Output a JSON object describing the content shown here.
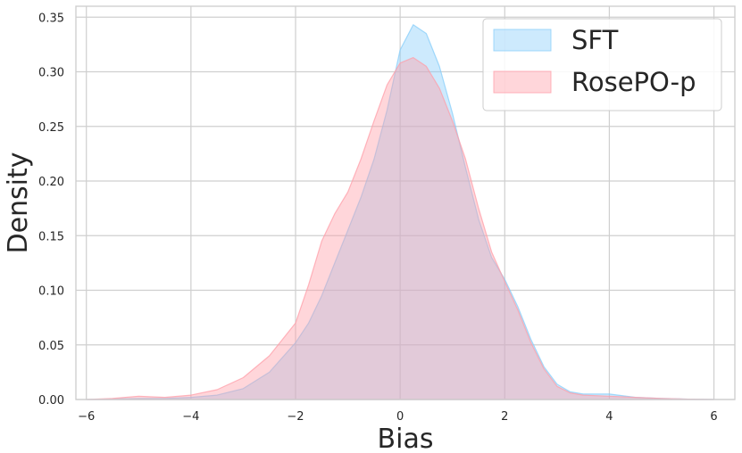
{
  "chart_data": {
    "type": "area",
    "title": "",
    "xlabel": "Bias",
    "ylabel": "Density",
    "xlim": [
      -6.2,
      6.4
    ],
    "ylim": [
      0,
      0.36
    ],
    "xticks": [
      -6,
      -4,
      -2,
      0,
      2,
      4,
      6
    ],
    "xtick_labels": [
      "−6",
      "−4",
      "−2",
      "0",
      "2",
      "4",
      "6"
    ],
    "yticks": [
      0,
      0.05,
      0.1,
      0.15,
      0.2,
      0.25,
      0.3,
      0.35
    ],
    "ytick_labels": [
      "0.00",
      "0.05",
      "0.10",
      "0.15",
      "0.20",
      "0.25",
      "0.30",
      "0.35"
    ],
    "grid": true,
    "legend_position": "top-right",
    "series": [
      {
        "name": "SFT",
        "color": "#87cefa",
        "x": [
          -6,
          -5.5,
          -5,
          -4.5,
          -4,
          -3.5,
          -3,
          -2.5,
          -2,
          -1.75,
          -1.5,
          -1.25,
          -1,
          -0.75,
          -0.5,
          -0.25,
          0,
          0.25,
          0.5,
          0.75,
          1,
          1.25,
          1.5,
          1.75,
          2,
          2.25,
          2.5,
          2.75,
          3,
          3.25,
          3.5,
          4,
          4.5,
          5,
          5.5,
          6
        ],
        "y": [
          0,
          0.0005,
          0.001,
          0.001,
          0.002,
          0.004,
          0.01,
          0.025,
          0.052,
          0.07,
          0.095,
          0.125,
          0.155,
          0.185,
          0.22,
          0.265,
          0.32,
          0.343,
          0.335,
          0.305,
          0.262,
          0.212,
          0.165,
          0.13,
          0.11,
          0.085,
          0.055,
          0.03,
          0.014,
          0.007,
          0.005,
          0.005,
          0.002,
          0.001,
          0.0003,
          0
        ]
      },
      {
        "name": "RosePO-p",
        "color": "#ff9ea8",
        "x": [
          -6,
          -5.5,
          -5,
          -4.5,
          -4,
          -3.5,
          -3,
          -2.5,
          -2,
          -1.75,
          -1.5,
          -1.25,
          -1,
          -0.75,
          -0.5,
          -0.25,
          0,
          0.25,
          0.5,
          0.75,
          1,
          1.25,
          1.5,
          1.75,
          2,
          2.25,
          2.5,
          2.75,
          3,
          3.25,
          3.5,
          4,
          4.5,
          5,
          5.5,
          6
        ],
        "y": [
          0,
          0.001,
          0.003,
          0.002,
          0.004,
          0.009,
          0.02,
          0.04,
          0.07,
          0.105,
          0.145,
          0.17,
          0.19,
          0.22,
          0.255,
          0.288,
          0.308,
          0.313,
          0.305,
          0.285,
          0.255,
          0.22,
          0.175,
          0.135,
          0.108,
          0.082,
          0.052,
          0.028,
          0.012,
          0.006,
          0.004,
          0.003,
          0.002,
          0.001,
          0.0003,
          0
        ]
      }
    ]
  }
}
